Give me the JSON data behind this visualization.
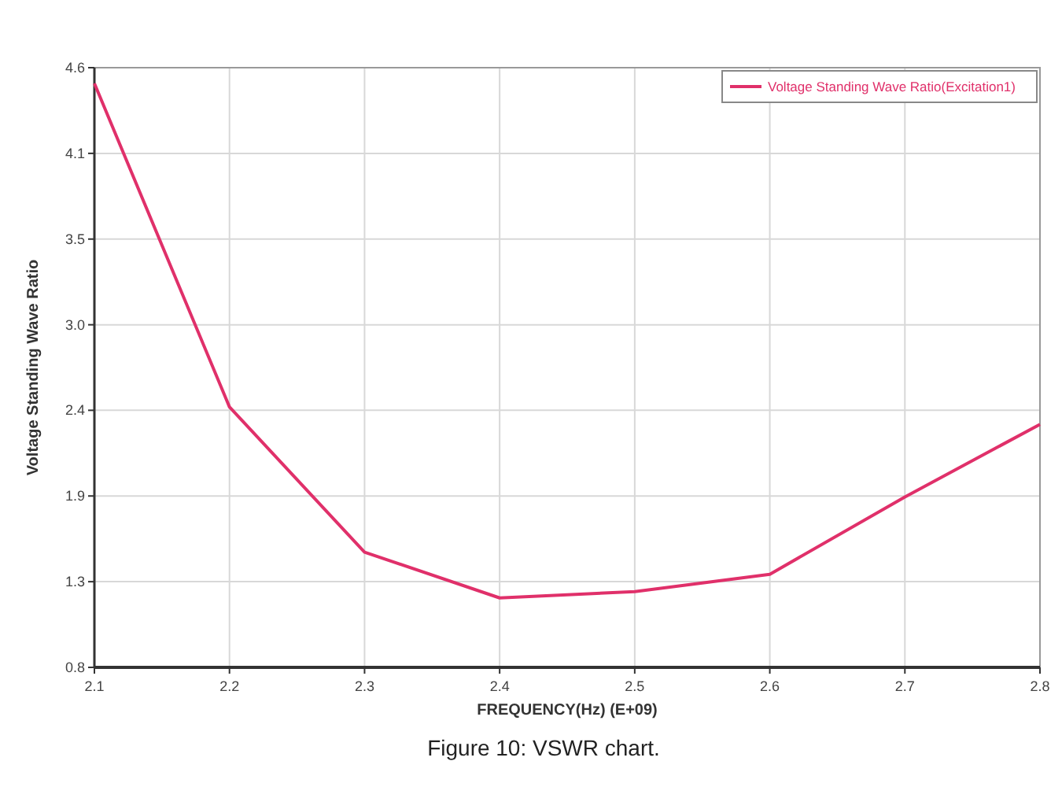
{
  "chart_data": {
    "type": "line",
    "xlabel": "FREQUENCY(Hz) (E+09)",
    "ylabel": "Voltage Standing Wave Ratio",
    "x": [
      2.1,
      2.2,
      2.3,
      2.4,
      2.5,
      2.6,
      2.7,
      2.8
    ],
    "series": [
      {
        "name": "Voltage Standing Wave Ratio(Excitation1)",
        "color": "#e0306a",
        "values": [
          4.5,
          2.45,
          1.53,
          1.24,
          1.28,
          1.39,
          1.88,
          2.34
        ]
      }
    ],
    "xlim": [
      2.1,
      2.8
    ],
    "xticks": [
      2.1,
      2.2,
      2.3,
      2.4,
      2.5,
      2.6,
      2.7,
      2.8
    ],
    "ylim": [
      0.8,
      4.6
    ],
    "yticks": [
      0.8,
      {
        "value": 1.343,
        "label": "1.3"
      },
      {
        "value": 1.886,
        "label": "1.9"
      },
      {
        "value": 2.429,
        "label": "2.4"
      },
      {
        "value": 2.971,
        "label": "3.0"
      },
      {
        "value": 3.514,
        "label": "3.5"
      },
      {
        "value": 4.057,
        "label": "4.1"
      },
      4.6
    ],
    "grid": true,
    "legend": "top right",
    "marker": "none",
    "line_style": "solid",
    "annotations": [
      "Figure 10: VSWR chart."
    ]
  }
}
